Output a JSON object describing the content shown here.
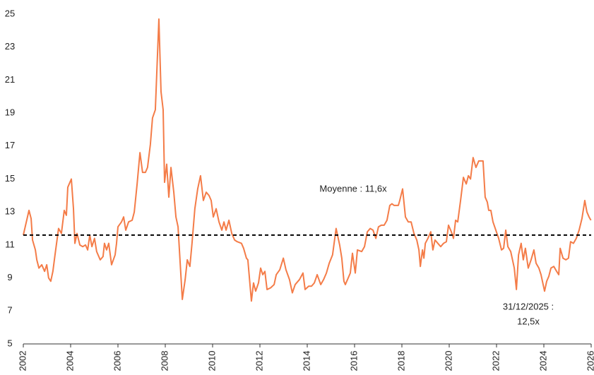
{
  "chart_data": {
    "type": "line",
    "x": [
      2002.0,
      2002.24,
      2002.33,
      2002.39,
      2002.51,
      2002.57,
      2002.66,
      2002.78,
      2002.9,
      2002.99,
      2003.07,
      2003.16,
      2003.25,
      2003.34,
      2003.49,
      2003.61,
      2003.73,
      2003.82,
      2003.88,
      2004.03,
      2004.12,
      2004.18,
      2004.27,
      2004.39,
      2004.51,
      2004.63,
      2004.72,
      2004.81,
      2004.9,
      2005.01,
      2005.1,
      2005.25,
      2005.37,
      2005.43,
      2005.52,
      2005.61,
      2005.73,
      2005.88,
      2005.94,
      2006.0,
      2006.15,
      2006.24,
      2006.33,
      2006.45,
      2006.6,
      2006.69,
      2006.81,
      2006.93,
      2007.04,
      2007.16,
      2007.25,
      2007.37,
      2007.46,
      2007.58,
      2007.73,
      2007.82,
      2007.91,
      2007.97,
      2008.06,
      2008.15,
      2008.24,
      2008.36,
      2008.45,
      2008.54,
      2008.72,
      2008.84,
      2008.93,
      2009.04,
      2009.13,
      2009.25,
      2009.37,
      2009.49,
      2009.61,
      2009.73,
      2009.85,
      2009.94,
      2010.03,
      2010.15,
      2010.27,
      2010.39,
      2010.48,
      2010.57,
      2010.69,
      2010.81,
      2010.93,
      2011.04,
      2011.22,
      2011.31,
      2011.43,
      2011.49,
      2011.64,
      2011.73,
      2011.82,
      2011.94,
      2012.03,
      2012.12,
      2012.21,
      2012.3,
      2012.45,
      2012.6,
      2012.69,
      2012.84,
      2012.99,
      2013.1,
      2013.25,
      2013.37,
      2013.49,
      2013.67,
      2013.82,
      2013.91,
      2014.06,
      2014.18,
      2014.3,
      2014.42,
      2014.57,
      2014.69,
      2014.81,
      2014.93,
      2015.07,
      2015.22,
      2015.37,
      2015.46,
      2015.55,
      2015.61,
      2015.73,
      2015.82,
      2015.91,
      2016.03,
      2016.12,
      2016.3,
      2016.42,
      2016.54,
      2016.66,
      2016.78,
      2016.9,
      2017.01,
      2017.13,
      2017.25,
      2017.37,
      2017.49,
      2017.58,
      2017.67,
      2017.76,
      2017.85,
      2017.91,
      2018.03,
      2018.15,
      2018.27,
      2018.39,
      2018.51,
      2018.63,
      2018.72,
      2018.78,
      2018.87,
      2018.93,
      2018.99,
      2019.1,
      2019.22,
      2019.31,
      2019.4,
      2019.52,
      2019.64,
      2019.76,
      2019.88,
      2019.97,
      2020.09,
      2020.18,
      2020.27,
      2020.36,
      2020.48,
      2020.6,
      2020.72,
      2020.81,
      2020.9,
      2021.01,
      2021.13,
      2021.25,
      2021.43,
      2021.52,
      2021.61,
      2021.67,
      2021.76,
      2021.85,
      2021.97,
      2022.09,
      2022.21,
      2022.3,
      2022.39,
      2022.48,
      2022.6,
      2022.75,
      2022.84,
      2022.93,
      2023.04,
      2023.13,
      2023.22,
      2023.34,
      2023.46,
      2023.58,
      2023.67,
      2023.79,
      2023.88,
      2024.03,
      2024.12,
      2024.21,
      2024.3,
      2024.42,
      2024.54,
      2024.63,
      2024.69,
      2024.81,
      2024.93,
      2025.04,
      2025.13,
      2025.25,
      2025.37,
      2025.49,
      2025.61,
      2025.73,
      2025.82,
      2025.91,
      2025.99
    ],
    "series": [
      {
        "color": "#f47c48",
        "values": [
          11.6,
          13.1,
          12.6,
          11.3,
          10.7,
          10.1,
          9.6,
          9.8,
          9.4,
          9.8,
          9.0,
          8.8,
          9.4,
          10.4,
          12.0,
          11.7,
          13.1,
          12.8,
          14.5,
          15.0,
          13.2,
          11.1,
          11.7,
          11.0,
          10.9,
          11.0,
          10.7,
          11.6,
          10.9,
          11.4,
          10.6,
          10.1,
          10.3,
          11.1,
          10.7,
          11.1,
          9.8,
          10.4,
          11.1,
          12.1,
          12.4,
          12.7,
          11.9,
          12.4,
          12.5,
          13.0,
          14.7,
          16.6,
          15.4,
          15.4,
          15.7,
          17.1,
          18.7,
          19.2,
          24.7,
          20.3,
          19.2,
          14.8,
          15.9,
          13.9,
          15.7,
          14.2,
          12.7,
          12.1,
          7.7,
          8.9,
          10.1,
          9.7,
          11.1,
          13.2,
          14.4,
          15.2,
          13.7,
          14.2,
          14.0,
          13.7,
          12.7,
          13.2,
          12.4,
          11.9,
          12.4,
          11.9,
          12.5,
          11.7,
          11.3,
          11.2,
          11.1,
          10.8,
          10.2,
          10.1,
          7.6,
          8.7,
          8.2,
          8.7,
          9.6,
          9.2,
          9.4,
          8.3,
          8.4,
          8.6,
          9.2,
          9.5,
          10.2,
          9.5,
          8.9,
          8.1,
          8.6,
          8.9,
          9.3,
          8.3,
          8.5,
          8.5,
          8.7,
          9.2,
          8.6,
          8.9,
          9.3,
          9.9,
          10.4,
          12.0,
          11.0,
          10.2,
          8.8,
          8.6,
          9.0,
          9.3,
          10.5,
          9.3,
          10.7,
          10.6,
          10.9,
          11.8,
          12.0,
          11.9,
          11.4,
          12.1,
          12.2,
          12.2,
          12.5,
          13.4,
          13.5,
          13.4,
          13.4,
          13.4,
          13.7,
          14.4,
          12.7,
          12.4,
          12.4,
          11.7,
          11.3,
          10.7,
          9.7,
          10.7,
          10.2,
          11.1,
          11.4,
          11.8,
          10.7,
          11.3,
          11.1,
          10.9,
          11.1,
          11.2,
          12.2,
          11.8,
          11.4,
          12.5,
          12.4,
          13.7,
          15.1,
          14.7,
          15.2,
          15.0,
          16.3,
          15.7,
          16.1,
          16.1,
          13.9,
          13.6,
          13.1,
          13.1,
          12.4,
          11.9,
          11.4,
          10.7,
          10.8,
          11.9,
          10.9,
          10.6,
          9.6,
          8.3,
          10.4,
          11.1,
          10.1,
          10.8,
          9.6,
          10.1,
          10.7,
          9.9,
          9.6,
          9.2,
          8.2,
          8.8,
          9.1,
          9.6,
          9.7,
          9.4,
          9.2,
          10.8,
          10.2,
          10.1,
          10.2,
          11.2,
          11.1,
          11.4,
          11.9,
          12.6,
          13.7,
          13.0,
          12.7,
          12.5
        ]
      }
    ],
    "xlim": [
      2002,
      2026
    ],
    "xticks": [
      2002,
      2004,
      2006,
      2008,
      2010,
      2012,
      2014,
      2016,
      2018,
      2020,
      2022,
      2024,
      2026
    ],
    "ylim": [
      5,
      25
    ],
    "yticks": [
      5,
      7,
      9,
      11,
      13,
      15,
      17,
      19,
      21,
      23,
      25
    ],
    "reference_line": {
      "value": 11.6,
      "label": "Moyenne : 11,6x"
    },
    "annotations": [
      {
        "lines": [
          "31/12/2025 :",
          "12,5x"
        ]
      }
    ]
  }
}
